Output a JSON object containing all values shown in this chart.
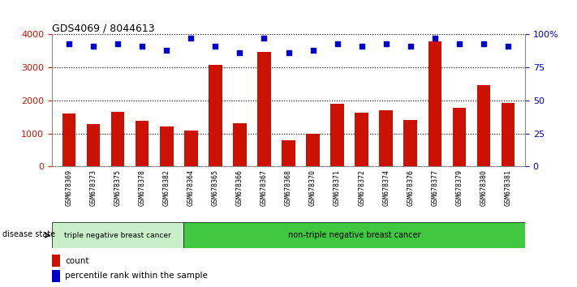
{
  "title": "GDS4069 / 8044613",
  "samples": [
    "GSM678369",
    "GSM678373",
    "GSM678375",
    "GSM678378",
    "GSM678382",
    "GSM678364",
    "GSM678365",
    "GSM678366",
    "GSM678367",
    "GSM678368",
    "GSM678370",
    "GSM678371",
    "GSM678372",
    "GSM678374",
    "GSM678376",
    "GSM678377",
    "GSM678379",
    "GSM678380",
    "GSM678381"
  ],
  "counts": [
    1600,
    1280,
    1650,
    1380,
    1220,
    1080,
    3080,
    1320,
    3460,
    800,
    980,
    1900,
    1640,
    1700,
    1420,
    3800,
    1780,
    2460,
    1930
  ],
  "percentile_ranks": [
    93,
    91,
    93,
    91,
    88,
    97,
    91,
    86,
    97,
    86,
    88,
    93,
    91,
    93,
    91,
    97,
    93,
    93,
    91
  ],
  "group1_count": 5,
  "group1_label": "triple negative breast cancer",
  "group2_label": "non-triple negative breast cancer",
  "group1_color": "#c8f0c8",
  "group2_color": "#40c840",
  "bar_color": "#cc1100",
  "dot_color": "#0000cc",
  "ylim_left": [
    0,
    4000
  ],
  "ylim_right": [
    0,
    100
  ],
  "yticks_left": [
    0,
    1000,
    2000,
    3000,
    4000
  ],
  "yticks_right": [
    0,
    25,
    50,
    75,
    100
  ],
  "ytick_labels_right": [
    "0",
    "25",
    "50",
    "75",
    "100%"
  ],
  "legend_count_label": "count",
  "legend_pct_label": "percentile rank within the sample",
  "disease_state_label": "disease state",
  "xtick_bg": "#d8d8d8",
  "plot_bg": "#ffffff"
}
